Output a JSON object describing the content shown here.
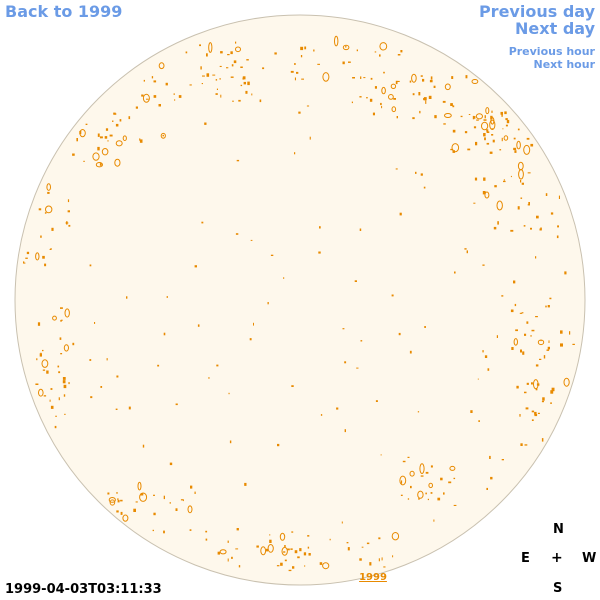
{
  "nav": {
    "back_label": "Back to 1999",
    "previous_day_label": "Previous day",
    "next_day_label": "Next day",
    "previous_hour_label": "Previous hour",
    "next_hour_label": "Next hour"
  },
  "timestamp": "1999-04-03T03:11:33",
  "year_label": "1999",
  "compass": {
    "north": "N",
    "east": "E",
    "west": "W",
    "south": "S",
    "center": "+"
  },
  "colors": {
    "link": "#6b9be6",
    "disk_fill": "#fef8ec",
    "disk_stroke": "#c9c1b0",
    "contour": "#e88a00"
  }
}
